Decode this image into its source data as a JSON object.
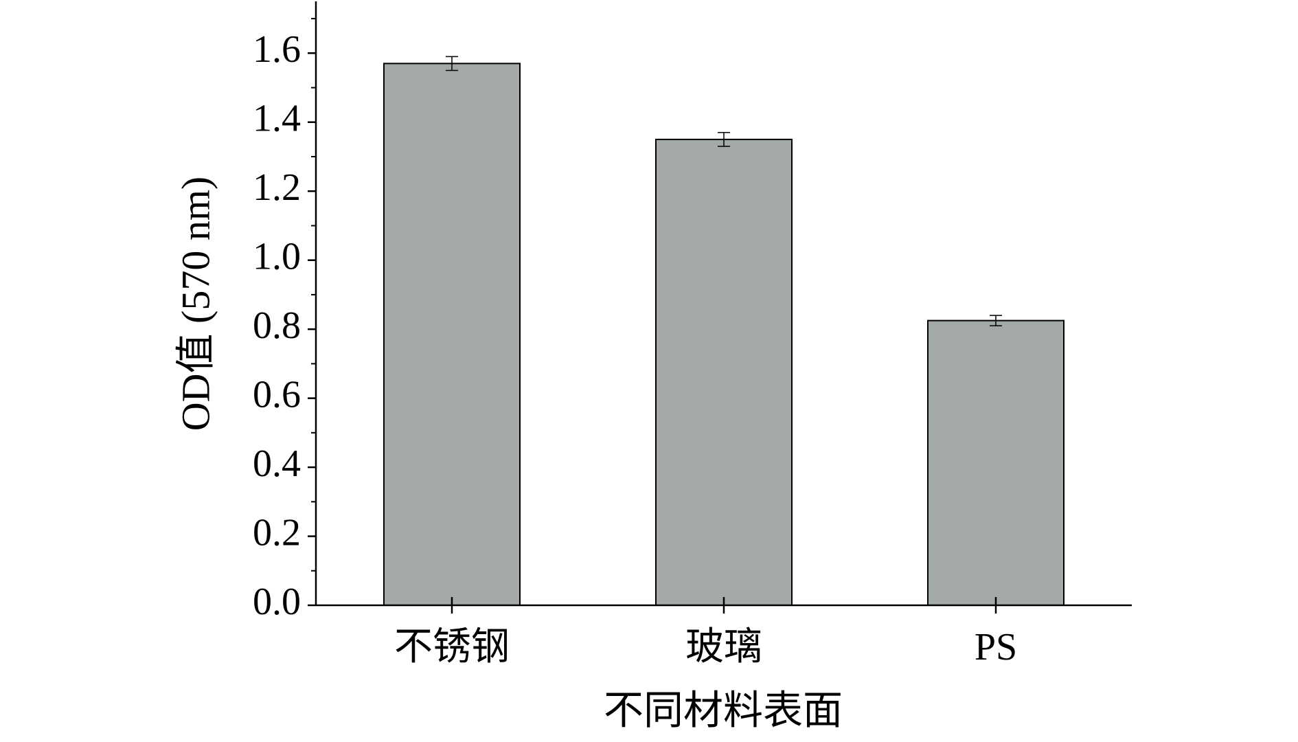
{
  "chart_data": {
    "type": "bar",
    "x_label": "不同材料表面",
    "y_label": "OD值 (570 nm)",
    "categories": [
      "不锈钢",
      "玻璃",
      "PS"
    ],
    "values": [
      1.57,
      1.35,
      0.825
    ],
    "errors": [
      0.02,
      0.02,
      0.015
    ],
    "color": "#a2a9a7",
    "ylim": [
      0,
      1.75
    ],
    "yticks": [
      {
        "value": 0,
        "label": "0.0"
      },
      0.2,
      0.4,
      0.6,
      0.8,
      {
        "value": 1,
        "label": "1.0"
      },
      1.2,
      1.4,
      1.6
    ],
    "yminorticks": [
      0.1,
      0.3,
      0.5,
      0.7,
      0.9,
      1.1,
      1.3,
      1.5,
      1.7
    ]
  }
}
